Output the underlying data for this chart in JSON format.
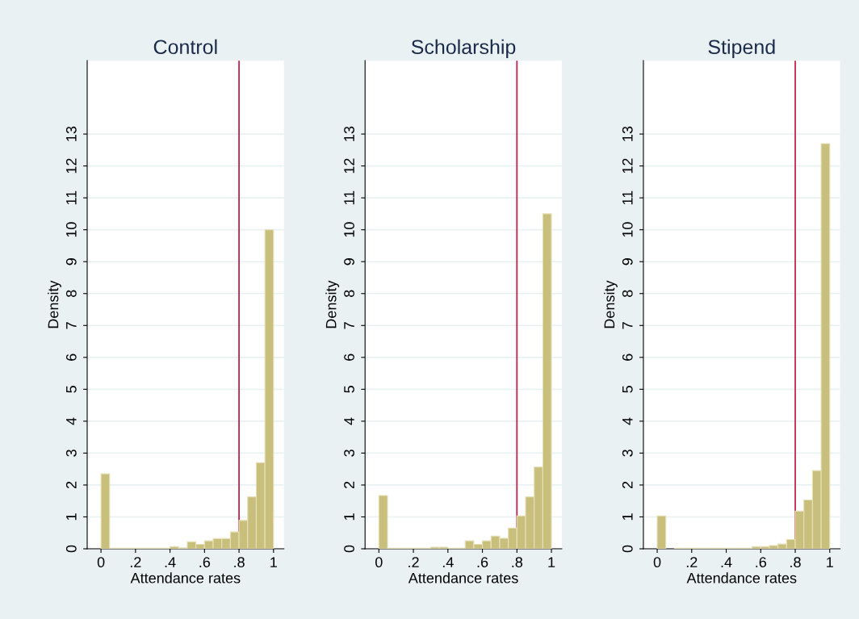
{
  "chart_data": [
    {
      "type": "histogram",
      "title": "Control",
      "xlabel": "Attendance rates",
      "ylabel": "Density",
      "color": "#c9bf7d",
      "bins": [
        0,
        0.05,
        0.1,
        0.15,
        0.2,
        0.25,
        0.3,
        0.35,
        0.4,
        0.45,
        0.5,
        0.55,
        0.6,
        0.65,
        0.7,
        0.75,
        0.8,
        0.85,
        0.9,
        0.95,
        1
      ],
      "values": [
        2.35,
        0.02,
        0.02,
        0.02,
        0.02,
        0.02,
        0.02,
        0.02,
        0.07,
        0.03,
        0.22,
        0.14,
        0.25,
        0.32,
        0.32,
        0.53,
        0.89,
        1.63,
        2.7,
        10.0
      ],
      "xlim": [
        -0.08,
        1.06
      ],
      "ylim": [
        0,
        15.3
      ],
      "xticks": [
        0,
        {
          "value": 0.2,
          "label": ".2"
        },
        {
          "value": 0.4,
          "label": ".4"
        },
        {
          "value": 0.6,
          "label": ".6"
        },
        {
          "value": 0.8,
          "label": ".8"
        },
        1
      ],
      "yticks": [
        0,
        1,
        2,
        3,
        4,
        5,
        6,
        7,
        8,
        9,
        10,
        11,
        12,
        13
      ],
      "grid": "y",
      "ref_lines": [
        {
          "axis": "x",
          "value": 0.8,
          "color": "#c8234a"
        }
      ]
    },
    {
      "type": "histogram",
      "title": "Scholarship",
      "xlabel": "Attendance rates",
      "ylabel": "Density",
      "color": "#c9bf7d",
      "bins": [
        0,
        0.05,
        0.1,
        0.15,
        0.2,
        0.25,
        0.3,
        0.35,
        0.4,
        0.45,
        0.5,
        0.55,
        0.6,
        0.65,
        0.7,
        0.75,
        0.8,
        0.85,
        0.9,
        0.95,
        1
      ],
      "values": [
        1.67,
        0.02,
        0.02,
        0.02,
        0.02,
        0.02,
        0.05,
        0.05,
        0.02,
        0.02,
        0.25,
        0.14,
        0.25,
        0.4,
        0.33,
        0.65,
        1.03,
        1.63,
        2.56,
        10.5
      ],
      "xlim": [
        -0.08,
        1.06
      ],
      "ylim": [
        0,
        15.3
      ],
      "xticks": [
        0,
        {
          "value": 0.2,
          "label": ".2"
        },
        {
          "value": 0.4,
          "label": ".4"
        },
        {
          "value": 0.6,
          "label": ".6"
        },
        {
          "value": 0.8,
          "label": ".8"
        },
        1
      ],
      "yticks": [
        0,
        1,
        2,
        3,
        4,
        5,
        6,
        7,
        8,
        9,
        10,
        11,
        12,
        13
      ],
      "grid": "y",
      "ref_lines": [
        {
          "axis": "x",
          "value": 0.8,
          "color": "#c8234a"
        }
      ]
    },
    {
      "type": "histogram",
      "title": "Stipend",
      "xlabel": "Attendance rates",
      "ylabel": "Density",
      "color": "#c9bf7d",
      "bins": [
        0,
        0.05,
        0.1,
        0.15,
        0.2,
        0.25,
        0.3,
        0.35,
        0.4,
        0.45,
        0.5,
        0.55,
        0.6,
        0.65,
        0.7,
        0.75,
        0.8,
        0.85,
        0.9,
        0.95,
        1
      ],
      "values": [
        1.03,
        0,
        0.02,
        0.02,
        0.02,
        0.02,
        0.02,
        0.02,
        0.02,
        0.02,
        0.02,
        0.07,
        0.07,
        0.1,
        0.15,
        0.29,
        1.18,
        1.53,
        2.45,
        12.7
      ],
      "xlim": [
        -0.08,
        1.06
      ],
      "ylim": [
        0,
        15.3
      ],
      "xticks": [
        0,
        {
          "value": 0.2,
          "label": ".2"
        },
        {
          "value": 0.4,
          "label": ".4"
        },
        {
          "value": 0.6,
          "label": ".6"
        },
        {
          "value": 0.8,
          "label": ".8"
        },
        1
      ],
      "yticks": [
        0,
        1,
        2,
        3,
        4,
        5,
        6,
        7,
        8,
        9,
        10,
        11,
        12,
        13
      ],
      "grid": "y",
      "ref_lines": [
        {
          "axis": "x",
          "value": 0.8,
          "color": "#c8234a"
        }
      ]
    }
  ]
}
